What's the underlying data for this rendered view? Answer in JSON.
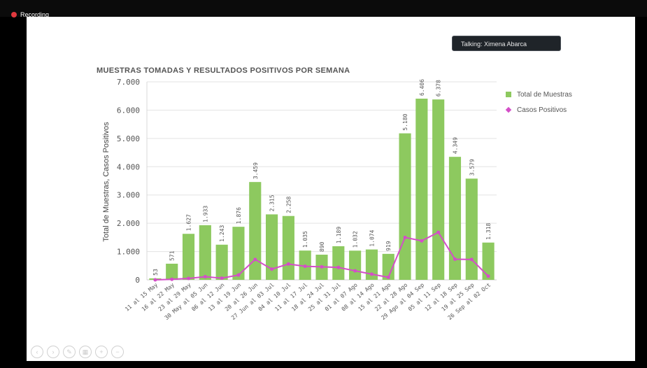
{
  "recording": {
    "label": "Recording"
  },
  "talking": {
    "label": "Talking: Ximena Abarca"
  },
  "controls": [
    "back-icon",
    "forward-icon",
    "pen-icon",
    "slides-icon",
    "zoom-in-icon",
    "zoom-out-icon"
  ],
  "colors": {
    "bars": "#8dc95f",
    "line": "#d44ec8",
    "axis_text": "#555555"
  },
  "chart_data": {
    "type": "bar",
    "title": "MUESTRAS TOMADAS Y RESULTADOS POSITIVOS POR SEMANA",
    "ylabel": "Total de Muestras,  Casos Positivos",
    "ylim": [
      0,
      7000
    ],
    "yticks": [
      "0",
      "1.000",
      "2.000",
      "3.000",
      "4.000",
      "5.000",
      "6.000",
      "7.000"
    ],
    "yticks_values": [
      0,
      1000,
      2000,
      3000,
      4000,
      5000,
      6000,
      7000
    ],
    "grid": true,
    "legend_position": "top-right",
    "categories": [
      "11 al 15 May",
      "16 al 22 May",
      "23 al 29 May",
      "30 May al 05 Jun",
      "06 al 12 Jun",
      "13 al 19 Jun",
      "20 al 26 Jun",
      "27 Jun al 03 Jul",
      "04 al 10 Jul",
      "11 al 17 Jul",
      "18 al 24 Jul",
      "25 al 31 Jul",
      "01 al 07 Ago",
      "08 al 14 Ago",
      "15 al 21 Ago",
      "22 al 28 Ago",
      "29 Ago al 04 Sep",
      "05 al 11 Sep",
      "12 al 18 Sep",
      "19 al 25 Sep",
      "26 Sep al 02 Oct"
    ],
    "series": [
      {
        "name": "Total de Muestras",
        "type": "bar",
        "values": [
          53,
          571,
          1627,
          1933,
          1243,
          1876,
          3459,
          2315,
          2258,
          1035,
          890,
          1189,
          1032,
          1074,
          919,
          5180,
          6406,
          6378,
          4349,
          3579,
          1318
        ],
        "labels": [
          "53",
          "571",
          "1.627",
          "1.933",
          "1.243",
          "1.876",
          "3.459",
          "2.315",
          "2.258",
          "1.035",
          "890",
          "1.189",
          "1.032",
          "1.074",
          "919",
          "5.180",
          "6.406",
          "6.378",
          "4.349",
          "3.579",
          "1.318"
        ]
      },
      {
        "name": "Casos Positivos",
        "type": "line",
        "values": [
          0,
          20,
          50,
          110,
          60,
          170,
          720,
          380,
          560,
          480,
          460,
          440,
          320,
          200,
          90,
          1500,
          1380,
          1680,
          730,
          720,
          130
        ]
      }
    ]
  }
}
